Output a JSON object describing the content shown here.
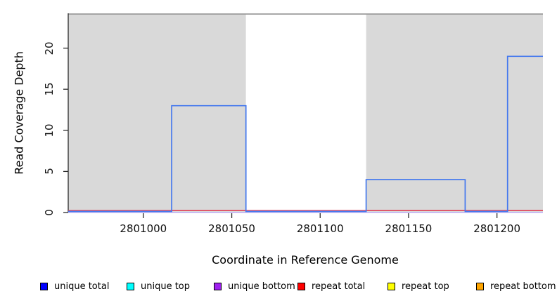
{
  "chart_data": {
    "type": "line",
    "subtype": "step-coverage",
    "title": "",
    "xlabel": "Coordinate in Reference Genome",
    "ylabel": "Read Coverage Depth",
    "xlim": [
      2800957.5,
      2801226
    ],
    "ylim": [
      0,
      24.15
    ],
    "x_ticks": [
      2801000,
      2801050,
      2801100,
      2801150,
      2801200
    ],
    "x_tick_labels": [
      "2801000",
      "2801050",
      "2801100",
      "2801150",
      "2801200"
    ],
    "y_ticks": [
      0,
      5,
      10,
      15,
      20
    ],
    "y_tick_labels": [
      "0",
      "5",
      "10",
      "15",
      "20"
    ],
    "grid": false,
    "legend_position": "bottom",
    "shaded_regions": [
      {
        "x0": 2800957.5,
        "x1": 2801058,
        "fill": "#d9d9d9"
      },
      {
        "x0": 2801126,
        "x1": 2801226,
        "fill": "#d9d9d9"
      }
    ],
    "series": [
      {
        "name": "unique total",
        "legend_color": "#0000ff",
        "line_color": "#4478ee",
        "points": [
          [
            2800957.5,
            0
          ],
          [
            2801016,
            0
          ],
          [
            2801016,
            13
          ],
          [
            2801058,
            13
          ],
          [
            2801058,
            0
          ],
          [
            2801126,
            0
          ],
          [
            2801126,
            4
          ],
          [
            2801182,
            4
          ],
          [
            2801182,
            0
          ],
          [
            2801206,
            0
          ],
          [
            2801206,
            19
          ],
          [
            2801226,
            19
          ]
        ]
      },
      {
        "name": "unique top",
        "legend_color": "#00ffff",
        "line_color": "#00ffff",
        "constant_value": 0,
        "hidden_under_others": true
      },
      {
        "name": "unique bottom",
        "legend_color": "#a020f0",
        "line_color": "#b9a9ef",
        "constant_value": 0
      },
      {
        "name": "repeat total",
        "legend_color": "#ff0000",
        "line_color": "#e13b50",
        "constant_value": 0
      },
      {
        "name": "repeat top",
        "legend_color": "#ffff00",
        "line_color": "#ffff00",
        "constant_value": 0,
        "hidden_under_others": true
      },
      {
        "name": "repeat bottom",
        "legend_color": "#ffa500",
        "line_color": "#ffa500",
        "constant_value": 0,
        "hidden_under_others": true
      }
    ],
    "legend": {
      "items": [
        {
          "label": "unique total",
          "color": "#0000ff"
        },
        {
          "label": "unique top",
          "color": "#00ffff"
        },
        {
          "label": "unique bottom",
          "color": "#a020f0"
        },
        {
          "label": "repeat total",
          "color": "#ff0000"
        },
        {
          "label": "repeat top",
          "color": "#ffff00"
        },
        {
          "label": "repeat bottom",
          "color": "#ffa500"
        }
      ]
    },
    "frame": {
      "top_border_color": "#9b9b9b",
      "left_axis_color": "#2b2b2b",
      "background": "#ffffff"
    }
  }
}
